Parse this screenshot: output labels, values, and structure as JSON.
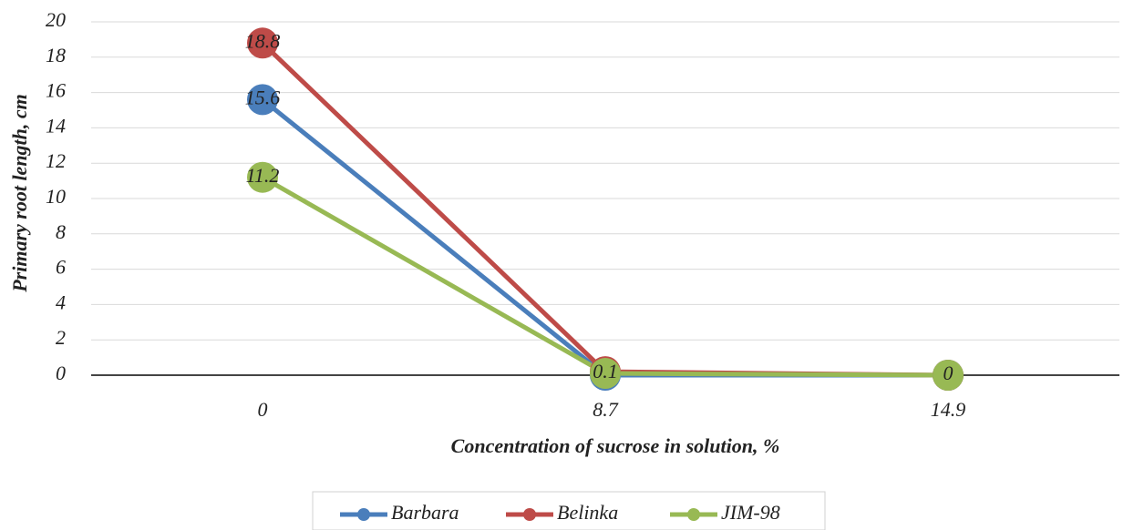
{
  "chart_data": {
    "type": "line",
    "x_label": "Concentration of sucrose in solution, %",
    "y_label": "Primary root length, cm",
    "categories": [
      "0",
      "8.7",
      "14.9"
    ],
    "series": [
      {
        "name": "Barbara",
        "color": "#4a7ebb",
        "values": [
          15.6,
          0,
          0
        ]
      },
      {
        "name": "Belinka",
        "color": "#be4b48",
        "values": [
          18.8,
          0.2,
          0
        ]
      },
      {
        "name": "JIM-98",
        "color": "#98b954",
        "values": [
          11.2,
          0.1,
          0
        ]
      }
    ],
    "ylim": [
      0,
      20
    ],
    "yticks": [
      0,
      2,
      4,
      6,
      8,
      10,
      12,
      14,
      16,
      18,
      20
    ],
    "grid": true,
    "legend": "bottom"
  }
}
